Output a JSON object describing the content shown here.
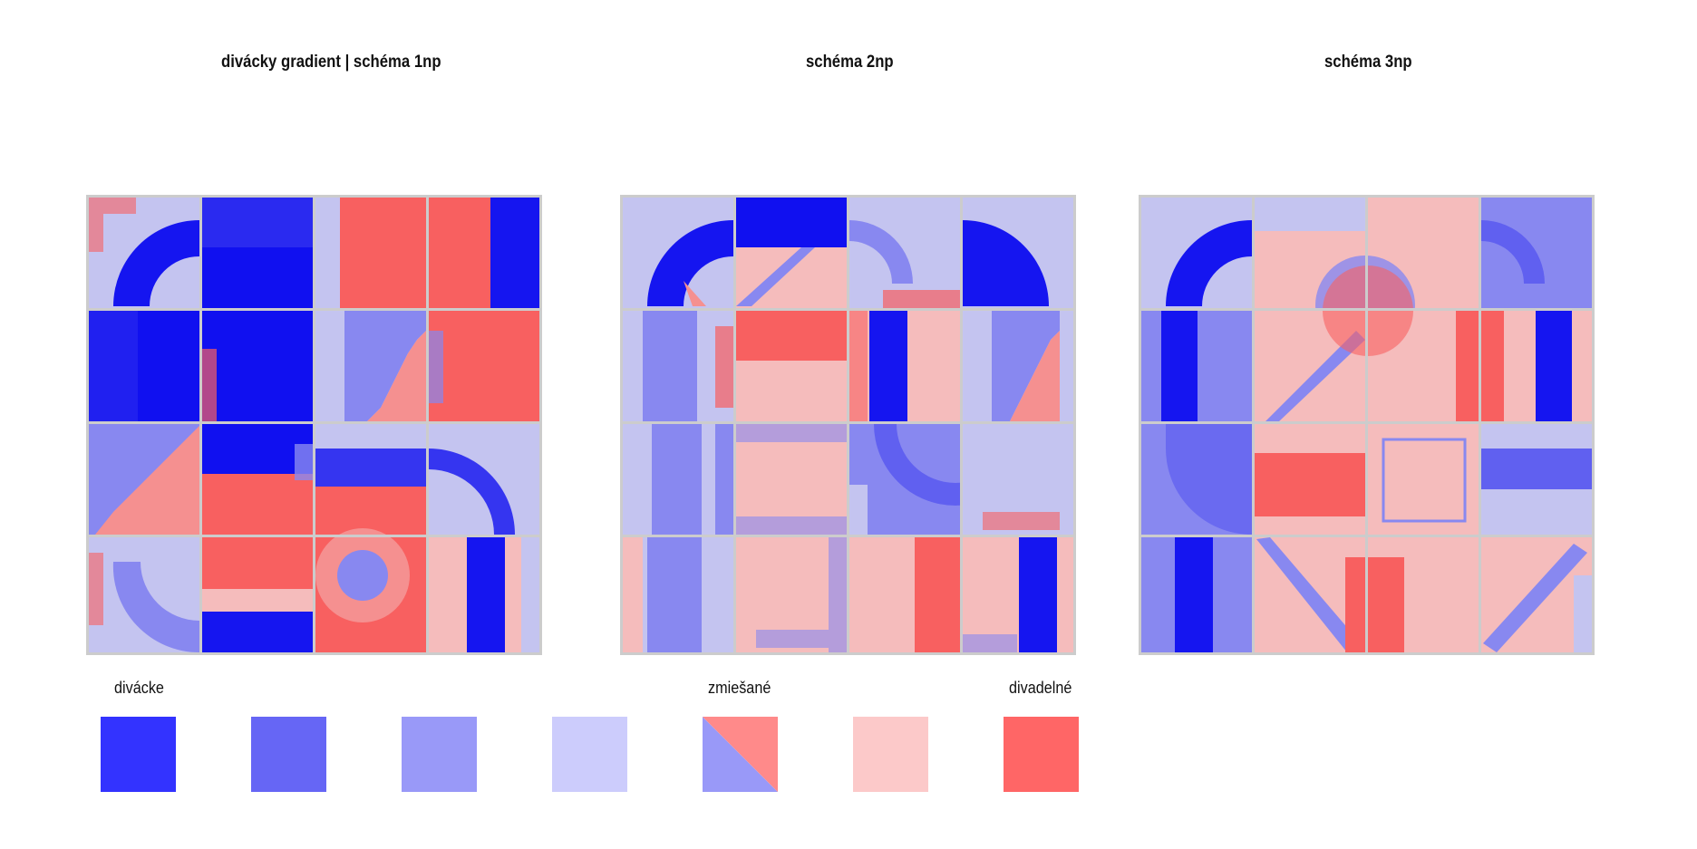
{
  "titles": {
    "plan1": "divácky gradient  | schéma 1np",
    "plan2": "schéma 2np",
    "plan3": "schéma 3np"
  },
  "legend": {
    "label_left": "divácke",
    "label_mid": "zmiešané",
    "label_right": "divadelné",
    "swatches": [
      {
        "name": "level-1",
        "color": "#3333ff"
      },
      {
        "name": "level-2",
        "color": "#6666f5"
      },
      {
        "name": "level-3",
        "color": "#9999f8"
      },
      {
        "name": "level-4",
        "color": "#ccccfc"
      },
      {
        "name": "mixed",
        "color": "#9999f8",
        "color2": "#ff8a8a"
      },
      {
        "name": "level-6",
        "color": "#fcc9c9"
      },
      {
        "name": "level-7",
        "color": "#ff6666"
      }
    ]
  },
  "palette": {
    "blue": "#1010f0",
    "mid_blue": "#8888f0",
    "light_blue": "#c4c4f0",
    "pink": "#f5bcbc",
    "red": "#f86060",
    "frame": "#cccccc"
  }
}
